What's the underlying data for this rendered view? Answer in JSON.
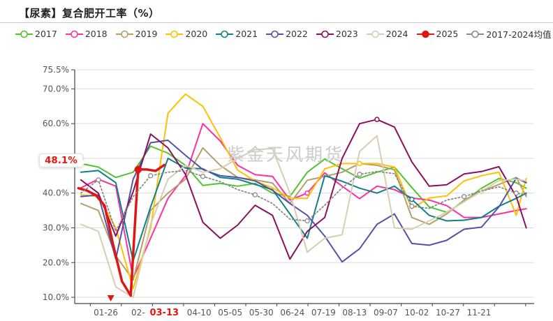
{
  "page": {
    "title": "【尿素】复合肥开工率（%）",
    "watermark": "紫金天风期货",
    "latest_value_badge": "48.1%"
  },
  "chart_data": {
    "type": "line",
    "title": "【尿素】复合肥开工率（%）",
    "legend_position": "top",
    "grid": true,
    "y_axis": {
      "min": 8.2,
      "max": 75.5,
      "ticks": [
        {
          "v": 10,
          "label": "10.0%"
        },
        {
          "v": 20,
          "label": "20.0%"
        },
        {
          "v": 30,
          "label": "30.0%"
        },
        {
          "v": 40,
          "label": "40.0%"
        },
        {
          "v": 50,
          "label": "50.0%"
        },
        {
          "v": 60,
          "label": "60.0%"
        },
        {
          "v": 70,
          "label": "70.0%"
        },
        {
          "v": 75.5,
          "label": "75.5%"
        }
      ]
    },
    "x_axis": {
      "unit": "day-of-year (dates MM-DD)",
      "ticks": [
        {
          "day": 25,
          "label": "01-26"
        },
        {
          "day": 51,
          "label": "02-"
        },
        {
          "day": 72,
          "label": "03-13",
          "highlight": true
        },
        {
          "day": 100,
          "label": "04-10"
        },
        {
          "day": 125,
          "label": "05-05"
        },
        {
          "day": 150,
          "label": "05-30"
        },
        {
          "day": 175,
          "label": "06-24"
        },
        {
          "day": 200,
          "label": "07-19"
        },
        {
          "day": 225,
          "label": "08-13"
        },
        {
          "day": 250,
          "label": "09-07"
        },
        {
          "day": 275,
          "label": "10-02"
        },
        {
          "day": 300,
          "label": "10-27"
        },
        {
          "day": 325,
          "label": "11-21"
        }
      ]
    },
    "sample_days": [
      5,
      19,
      33,
      47,
      61,
      75,
      89,
      103,
      117,
      131,
      145,
      159,
      173,
      187,
      201,
      215,
      229,
      243,
      257,
      271,
      285,
      299,
      313,
      327,
      341,
      355,
      363
    ],
    "series": [
      {
        "name": "2017",
        "color": "#4ec52e",
        "values": [
          48.5,
          47.5,
          44.5,
          46,
          53.5,
          51.5,
          48,
          42.2,
          42.8,
          42,
          42.8,
          40,
          39,
          46,
          49.8,
          47,
          44.3,
          46,
          47.5,
          41.6,
          36,
          34.5,
          37.5,
          41.4,
          44.2,
          43,
          41.4
        ]
      },
      {
        "name": "2018",
        "color": "#ff2f9f",
        "markers": [
          13
        ],
        "values": [
          41.5,
          44,
          42,
          15.5,
          27,
          38.5,
          45,
          60,
          55,
          48,
          45.3,
          44.8,
          38,
          40,
          45.8,
          42,
          38.4,
          42,
          41,
          38.6,
          38,
          36.4,
          33,
          33,
          34,
          35,
          35.5
        ]
      },
      {
        "name": "2019",
        "color": "#b2a06b",
        "values": [
          37,
          35,
          22,
          15,
          35,
          40,
          44,
          53,
          48,
          44.5,
          43.8,
          42.9,
          37,
          43.7,
          44.8,
          46,
          48.5,
          48,
          46.7,
          33,
          31,
          34,
          38,
          40.5,
          42.5,
          44.5,
          39
        ]
      },
      {
        "name": "2020",
        "color": "#ffc002",
        "markers": [
          16
        ],
        "values": [
          39.5,
          39,
          30,
          12.5,
          30,
          63,
          68.5,
          65,
          56,
          46.6,
          43.5,
          41.5,
          38.5,
          38.5,
          47,
          48.5,
          48.5,
          48.5,
          47.5,
          35.6,
          38.6,
          39.2,
          43.5,
          45,
          46,
          33.6,
          44.2
        ]
      },
      {
        "name": "2021",
        "color": "#0f8089",
        "markers": [
          19
        ],
        "values": [
          46,
          46.5,
          43,
          20.5,
          36,
          50,
          47.2,
          47,
          44.5,
          44,
          42.5,
          41,
          34,
          27,
          45,
          43.4,
          41.4,
          40,
          42,
          38.2,
          33.6,
          32,
          32.2,
          33,
          36.2,
          38.5,
          40
        ]
      },
      {
        "name": "2022",
        "color": "#5552a6",
        "values": [
          39,
          39.5,
          21,
          44,
          54.5,
          55.2,
          50.9,
          46.8,
          45,
          44.5,
          43.5,
          40.8,
          37,
          33.6,
          27.6,
          20.2,
          24,
          31,
          34,
          25.5,
          25,
          26.4,
          29.6,
          30.2,
          36,
          44.3,
          43
        ]
      },
      {
        "name": "2023",
        "color": "#8c0e5f",
        "markers": [
          17
        ],
        "values": [
          43.8,
          40,
          27.6,
          40.4,
          57,
          53,
          45.4,
          31.6,
          27,
          30.8,
          36.5,
          33.6,
          21,
          29,
          33,
          50,
          60,
          61.2,
          59,
          49,
          42,
          42.4,
          45.5,
          46.2,
          47.6,
          39,
          30
        ]
      },
      {
        "name": "2024",
        "color": "#d8cdb0",
        "markers": [
          23
        ],
        "values": [
          31,
          29,
          13,
          10,
          31,
          44,
          48,
          46,
          47,
          50,
          52.5,
          52.8,
          40,
          23,
          27,
          28,
          52,
          56.5,
          30,
          29.6,
          32,
          34.5,
          37.5,
          40.5,
          43.6,
          44,
          43.5
        ]
      },
      {
        "name": "2025",
        "color": "#dd1713",
        "width": 3.5,
        "filled_symbol": true,
        "markers": [
          7
        ],
        "days": [
          3,
          10,
          17,
          24,
          31,
          38,
          45,
          51,
          58,
          65,
          72
        ],
        "values": [
          41.4,
          40.7,
          39.4,
          36.4,
          25,
          14.6,
          10.5,
          46.8,
          46.8,
          46.4,
          48.1
        ]
      },
      {
        "name": "2017-2024均值",
        "color": "#8a8a8a",
        "dashed": true,
        "marker_every": 3,
        "values": [
          40,
          43.8,
          29,
          39,
          45,
          46,
          46.5,
          44.8,
          43.3,
          41,
          39.5,
          37,
          32.5,
          32,
          36.5,
          41.5,
          45.4,
          46.2,
          45.6,
          36.2,
          35.6,
          38,
          39,
          40.6,
          41.8,
          40,
          39.5
        ]
      }
    ],
    "latest_point": {
      "date_label": "03-13",
      "value": 48.1,
      "value_label": "48.1%"
    },
    "annotation_arrow_day": 29
  }
}
